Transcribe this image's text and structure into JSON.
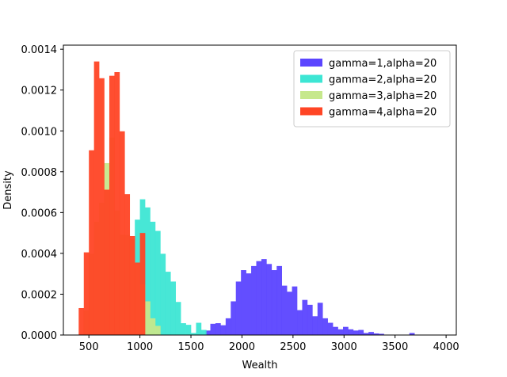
{
  "chart_data": {
    "type": "bar",
    "subtype": "overlaid-histogram",
    "xlabel": "Wealth",
    "ylabel": "Density",
    "xlim": [
      250,
      4100
    ],
    "ylim": [
      0,
      0.00142
    ],
    "x_ticks": [
      500,
      1000,
      1500,
      2000,
      2500,
      3000,
      3500,
      4000
    ],
    "y_ticks": [
      0.0,
      0.0002,
      0.0004,
      0.0006,
      0.0008,
      0.001,
      0.0012,
      0.0014
    ],
    "y_tick_labels": [
      "0.0000",
      "0.0002",
      "0.0004",
      "0.0006",
      "0.0008",
      "0.0010",
      "0.0012",
      "0.0014"
    ],
    "legend_placement": "upper-right",
    "grid": false,
    "series": [
      {
        "name": "gamma=1,alpha=20",
        "color": "#5b45ff",
        "bin_start": 1640,
        "bin_width": 50,
        "values": [
          2.2e-05,
          5.5e-05,
          5.8e-05,
          4.8e-05,
          8.2e-05,
          0.000165,
          0.000262,
          0.000318,
          0.000302,
          0.000338,
          0.000362,
          0.000372,
          0.000348,
          0.000318,
          0.000338,
          0.000242,
          0.000212,
          0.000238,
          0.000122,
          0.000172,
          0.000148,
          9.2e-05,
          0.000158,
          8.2e-05,
          6e-05,
          4e-05,
          2.8e-05,
          4e-05,
          2.8e-05,
          2.2e-05,
          2.5e-05,
          1e-05,
          1.5e-05,
          8e-06,
          6e-06,
          0,
          0,
          0,
          0,
          0,
          1e-05,
          0,
          0,
          0,
          0,
          0,
          0
        ]
      },
      {
        "name": "gamma=2,alpha=20",
        "color": "#3de6d4",
        "bin_start": 600,
        "bin_width": 50,
        "values": [
          8e-06,
          2.2e-05,
          5e-05,
          9e-05,
          0.000165,
          0.000292,
          0.000418,
          0.000565,
          0.000665,
          0.000625,
          0.000555,
          0.00051,
          0.000398,
          0.00031,
          0.000262,
          0.000162,
          5.8e-05,
          5e-05,
          1e-05,
          6e-05,
          2.5e-05
        ]
      },
      {
        "name": "gamma=3,alpha=20",
        "color": "#c6e88c",
        "bin_start": 450,
        "bin_width": 50,
        "values": [
          0.00012,
          0.000398,
          0.000555,
          0.000648,
          0.000842,
          0.000968,
          0.00061,
          0.000492,
          0.00049,
          0.000468,
          0.000345,
          0.000248,
          0.000165,
          8.2e-05,
          4.5e-05
        ]
      },
      {
        "name": "gamma=4,alpha=20",
        "color": "#ff4525",
        "bin_start": 400,
        "bin_width": 50,
        "values": [
          0.000132,
          0.000405,
          0.000905,
          0.00134,
          0.001258,
          0.000712,
          0.00127,
          0.001288,
          0.000998,
          0.00069,
          0.000485,
          0.000355,
          0.0005
        ]
      }
    ]
  }
}
